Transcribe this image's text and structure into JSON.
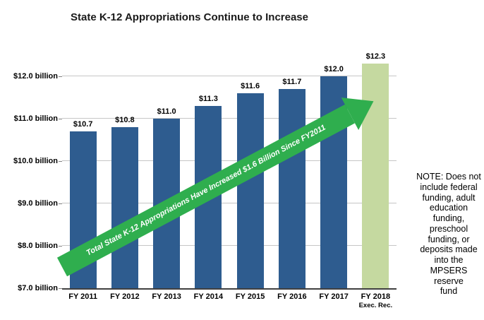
{
  "title": "State K-12 Appropriations Continue to Increase",
  "note": "NOTE: Does not\ninclude federal\nfunding, adult\neducation\nfunding,\npreschool\nfunding, or\ndeposits made\ninto the\nMPSERS reserve\nfund",
  "arrow": {
    "label": "Total State K-12 Appropriations Have Increased $1.6 Billion Since FY2011",
    "color": "#2fae4e"
  },
  "colors": {
    "bar": "#2e5c8f",
    "highlight_bar": "#c5d9a0",
    "gridline": "#c6c6c6"
  },
  "chart_data": {
    "type": "bar",
    "title": "State K-12 Appropriations Continue to Increase",
    "categories": [
      "FY 2011",
      "FY 2012",
      "FY 2013",
      "FY 2014",
      "FY 2015",
      "FY 2016",
      "FY 2017",
      "FY 2018"
    ],
    "category_sublabels": [
      "",
      "",
      "",
      "",
      "",
      "",
      "",
      "Exec. Rec."
    ],
    "values": [
      10.7,
      10.8,
      11.0,
      11.3,
      11.6,
      11.7,
      12.0,
      12.3
    ],
    "data_labels": [
      "$10.7",
      "$10.8",
      "$11.0",
      "$11.3",
      "$11.6",
      "$11.7",
      "$12.0",
      "$12.3"
    ],
    "units": "billion USD",
    "xlabel": "",
    "ylabel": "",
    "ylim": [
      7.0,
      12.5
    ],
    "yticks": [
      7.0,
      8.0,
      9.0,
      10.0,
      11.0,
      12.0
    ],
    "ytick_labels": [
      "$7.0 billion",
      "$8.0 billion",
      "$9.0 billion",
      "$10.0 billion",
      "$11.0 billion",
      "$12.0 billion"
    ],
    "grid": true,
    "legend": false,
    "highlight_index": 7,
    "annotation": "Total State K-12 Appropriations Have Increased $1.6 Billion Since FY2011"
  }
}
